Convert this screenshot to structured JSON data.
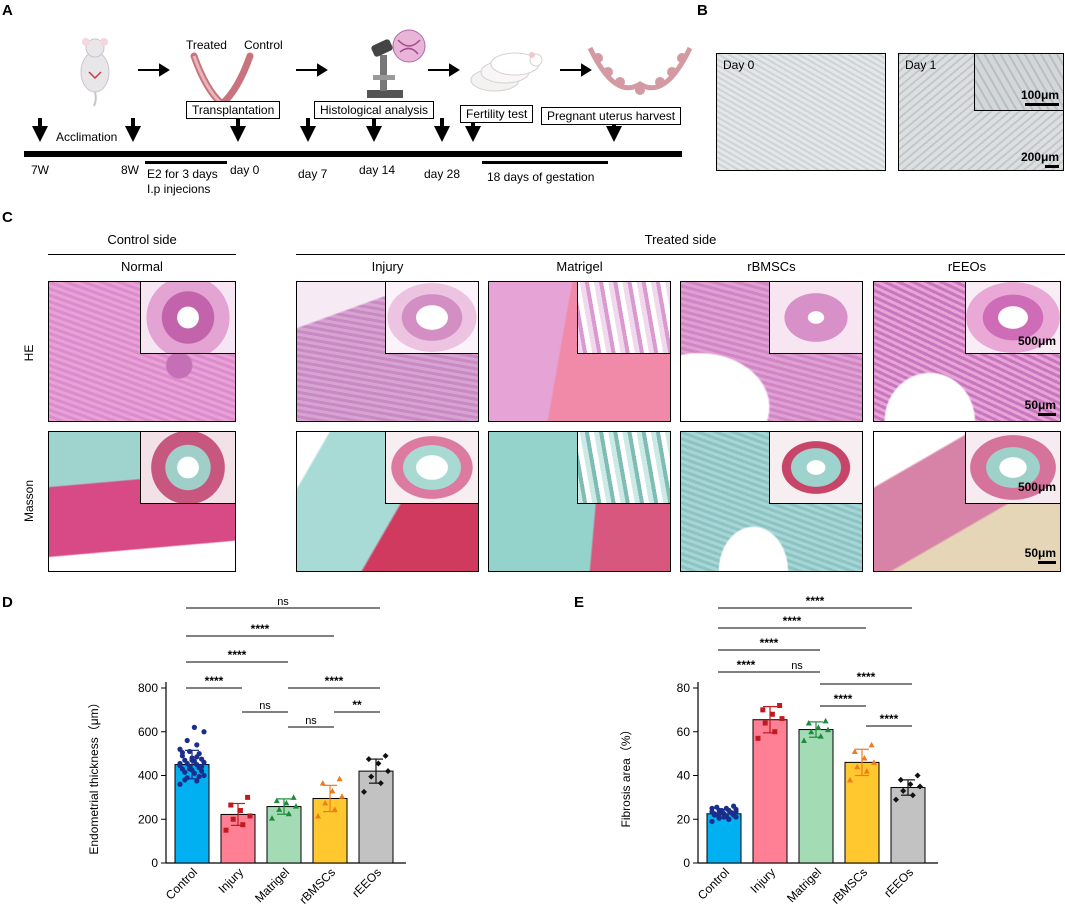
{
  "panel_labels": {
    "a": "A",
    "b": "B",
    "c": "C",
    "d": "D",
    "e": "E"
  },
  "timeline": {
    "treated_label": "Treated",
    "control_label": "Control",
    "acclimation": "Acclimation",
    "transplantation": "Transplantation",
    "histological": "Histological analysis",
    "fertility": "Fertility test",
    "harvest": "Pregnant uterus harvest",
    "e2_line1": "E2 for 3 days",
    "e2_line2": "I.p injecions",
    "gestation": "18 days of gestation",
    "ticks": [
      "7W",
      "8W",
      "day 0",
      "day 7",
      "day 14",
      "day 28"
    ]
  },
  "panel_b": {
    "day0": "Day 0",
    "day1": "Day 1",
    "scale_inset": "100μm",
    "scale_main": "200μm"
  },
  "panel_c": {
    "control_side": "Control side",
    "treated_side": "Treated side",
    "columns": [
      "Normal",
      "Injury",
      "Matrigel",
      "rBMSCs",
      "rEEOs"
    ],
    "rows": [
      "HE",
      "Masson"
    ],
    "scale_inset": "500μm",
    "scale_main": "50μm",
    "colors": {
      "he_base": "#e8a6d6",
      "he_dark": "#b45aa8",
      "masson_blue": "#8fcfc8",
      "masson_red": "#d2457a"
    }
  },
  "chart_data": [
    {
      "type": "bar",
      "panel": "D",
      "ylabel": "Endometrial thickness（μm）",
      "categories": [
        "Control",
        "Injury",
        "Matrigel",
        "rBMSCs",
        "rEEOs"
      ],
      "values": [
        450,
        222,
        258,
        295,
        420
      ],
      "sd": [
        65,
        50,
        35,
        60,
        55
      ],
      "colors": [
        "#00b0f0",
        "#ff8095",
        "#a3dbb5",
        "#ffc82e",
        "#c2c2c2"
      ],
      "point_colors": [
        "#1a2e8c",
        "#c0191f",
        "#1e8a3c",
        "#f07b1c",
        "#111111"
      ],
      "points": [
        [
          360,
          375,
          390,
          400,
          410,
          415,
          420,
          425,
          430,
          435,
          440,
          445,
          450,
          455,
          460,
          465,
          470,
          475,
          480,
          490,
          500,
          510,
          520,
          540,
          560,
          600,
          620,
          380,
          440,
          470,
          505,
          395,
          430,
          455,
          485
        ],
        [
          150,
          175,
          200,
          215,
          240,
          265,
          300
        ],
        [
          205,
          225,
          245,
          260,
          275,
          285,
          300
        ],
        [
          215,
          245,
          275,
          305,
          330,
          365,
          385
        ],
        [
          325,
          365,
          395,
          420,
          455,
          475,
          490
        ]
      ],
      "ylim": [
        0,
        800
      ],
      "yticks": [
        0,
        200,
        400,
        600,
        800
      ],
      "significance": [
        {
          "from": 0,
          "to": 4,
          "label": "ns"
        },
        {
          "from": 0,
          "to": 3,
          "label": "****"
        },
        {
          "from": 0,
          "to": 2,
          "label": "****"
        },
        {
          "from": 0,
          "to": 1,
          "label": "****"
        },
        {
          "from": 1,
          "to": 2,
          "label": "ns"
        },
        {
          "from": 2,
          "to": 3,
          "label": "ns"
        },
        {
          "from": 2,
          "to": 4,
          "label": "****"
        },
        {
          "from": 3,
          "to": 4,
          "label": "**"
        }
      ]
    },
    {
      "type": "bar",
      "panel": "E",
      "ylabel": "Fibrosis area（%）",
      "categories": [
        "Control",
        "Injury",
        "Matrigel",
        "rBMSCs",
        "rEEOs"
      ],
      "values": [
        22.5,
        65.5,
        61,
        46,
        34.5
      ],
      "sd": [
        2,
        6,
        3.5,
        6,
        3.5
      ],
      "colors": [
        "#00b0f0",
        "#ff8095",
        "#a3dbb5",
        "#ffc82e",
        "#c2c2c2"
      ],
      "point_colors": [
        "#1a2e8c",
        "#c0191f",
        "#1e8a3c",
        "#f07b1c",
        "#111111"
      ],
      "points": [
        [
          19,
          20,
          20.5,
          21,
          21.5,
          22,
          22,
          22.5,
          22.5,
          23,
          23,
          23.5,
          24,
          24,
          24.5,
          25,
          25.5,
          26,
          21,
          22,
          23,
          24,
          25,
          20,
          22.5,
          23.5
        ],
        [
          57,
          60,
          64,
          66,
          68,
          70,
          72
        ],
        [
          56,
          58,
          60,
          61,
          62,
          64,
          65
        ],
        [
          38,
          42,
          44,
          46,
          48,
          51,
          54
        ],
        [
          29,
          31,
          33,
          35,
          36,
          38,
          40
        ]
      ],
      "ylim": [
        0,
        80
      ],
      "yticks": [
        0,
        20,
        40,
        60,
        80
      ],
      "significance": [
        {
          "from": 0,
          "to": 4,
          "label": "****"
        },
        {
          "from": 0,
          "to": 3,
          "label": "****"
        },
        {
          "from": 0,
          "to": 2,
          "label": "****"
        },
        {
          "from": 0,
          "to": 1,
          "label": "****"
        },
        {
          "from": 1,
          "to": 2,
          "label": "ns"
        },
        {
          "from": 2,
          "to": 4,
          "label": "****"
        },
        {
          "from": 2,
          "to": 3,
          "label": "****"
        },
        {
          "from": 3,
          "to": 4,
          "label": "****"
        }
      ]
    }
  ]
}
